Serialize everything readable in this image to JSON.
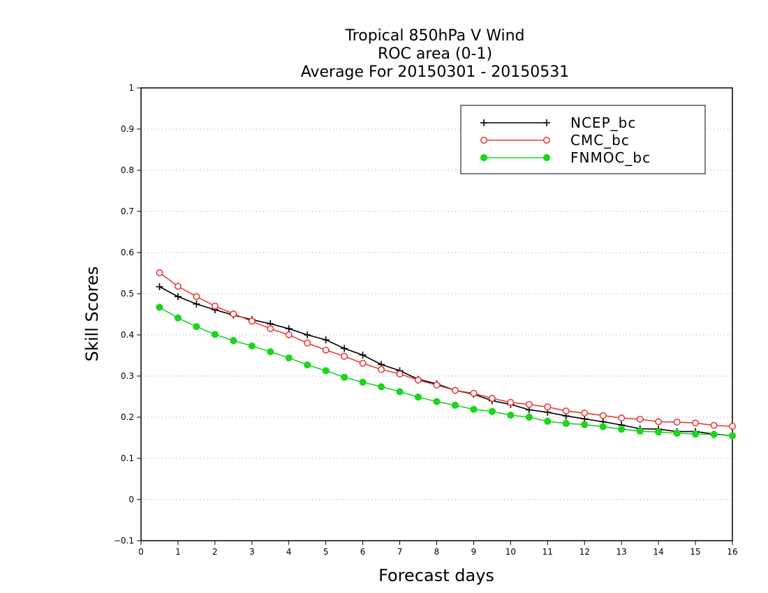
{
  "chart_data": {
    "type": "line",
    "title_lines": [
      "Tropical 850hPa V Wind",
      "ROC area (0-1)",
      "Average For 20150301 - 20150531"
    ],
    "xlabel": "Forecast days",
    "ylabel": "Skill Scores",
    "xlim": [
      0,
      16
    ],
    "ylim": [
      -0.1,
      1
    ],
    "xticks": [
      "0",
      "1",
      "2",
      "3",
      "4",
      "5",
      "6",
      "7",
      "8",
      "9",
      "10",
      "11",
      "12",
      "13",
      "14",
      "15",
      "16"
    ],
    "yticks": [
      "−0.1",
      "0",
      "0.1",
      "0.2",
      "0.3",
      "0.4",
      "0.5",
      "0.6",
      "0.7",
      "0.8",
      "0.9",
      "1"
    ],
    "grid": "horizontal dotted",
    "legend_position": "top-right",
    "x": [
      0.5,
      1,
      1.5,
      2,
      2.5,
      3,
      3.5,
      4,
      4.5,
      5,
      5.5,
      6,
      6.5,
      7,
      7.5,
      8,
      8.5,
      9,
      9.5,
      10,
      10.5,
      11,
      11.5,
      12,
      12.5,
      13,
      13.5,
      14,
      14.5,
      15,
      15.5,
      16
    ],
    "series": [
      {
        "name": "NCEP_bc",
        "color": "#000000",
        "marker": "plus",
        "values": [
          0.517,
          0.493,
          0.475,
          0.461,
          0.448,
          0.437,
          0.427,
          0.415,
          0.4,
          0.388,
          0.367,
          0.351,
          0.328,
          0.313,
          0.292,
          0.281,
          0.265,
          0.256,
          0.24,
          0.231,
          0.218,
          0.212,
          0.203,
          0.196,
          0.189,
          0.181,
          0.172,
          0.171,
          0.165,
          0.165,
          0.159,
          0.155
        ]
      },
      {
        "name": "CMC_bc",
        "color": "#e83c3c",
        "marker": "open-circle",
        "values": [
          0.551,
          0.518,
          0.493,
          0.47,
          0.451,
          0.433,
          0.415,
          0.4,
          0.38,
          0.363,
          0.348,
          0.331,
          0.316,
          0.305,
          0.29,
          0.278,
          0.265,
          0.258,
          0.246,
          0.236,
          0.231,
          0.225,
          0.215,
          0.21,
          0.204,
          0.198,
          0.195,
          0.189,
          0.188,
          0.186,
          0.18,
          0.178
        ]
      },
      {
        "name": "FNMOC_bc",
        "color": "#1ed41e",
        "marker": "filled-circle",
        "values": [
          0.467,
          0.441,
          0.42,
          0.401,
          0.386,
          0.373,
          0.359,
          0.344,
          0.327,
          0.313,
          0.297,
          0.285,
          0.274,
          0.262,
          0.249,
          0.238,
          0.229,
          0.219,
          0.214,
          0.205,
          0.2,
          0.19,
          0.185,
          0.182,
          0.177,
          0.171,
          0.166,
          0.164,
          0.161,
          0.159,
          0.158,
          0.155
        ]
      }
    ]
  }
}
